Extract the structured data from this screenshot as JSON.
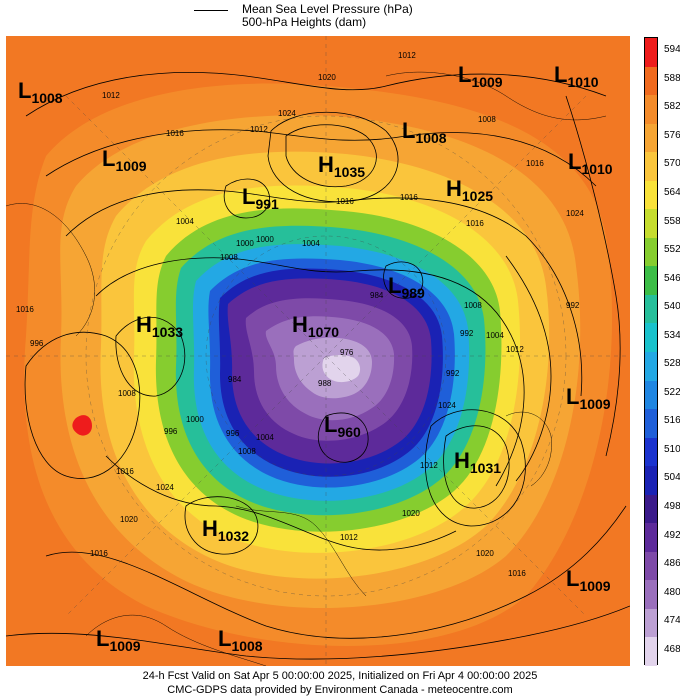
{
  "title": {
    "line1": "Mean Sea Level Pressure (hPa)",
    "line2": "500-hPa Heights (dam)"
  },
  "footer": {
    "line1": "24-h Fcst Valid on Sat Apr  5 00:00:00 2025, Initialized on Fri Apr  4 00:00:00 2025",
    "line2": "CMC-GDPS data provided by Environment Canada - meteocentre.com"
  },
  "colorbar": {
    "levels": [
      "594",
      "588",
      "582",
      "576",
      "570",
      "564",
      "558",
      "552",
      "546",
      "540",
      "534",
      "528",
      "522",
      "516",
      "510",
      "504",
      "498",
      "492",
      "486",
      "480",
      "474",
      "468"
    ],
    "colors": [
      "#ee1c1c",
      "#f06a1e",
      "#f48b2a",
      "#f6a534",
      "#fac53c",
      "#f9e23a",
      "#c6dd2f",
      "#86cd2f",
      "#3cbd46",
      "#26bf9a",
      "#19c2cc",
      "#23a8e4",
      "#1f86e2",
      "#1f5fd9",
      "#1b33cf",
      "#1a22b4",
      "#3b1a8a",
      "#5d2a9a",
      "#7e4aa8",
      "#9a6fbc",
      "#bca0d3",
      "#e2d4ec"
    ]
  },
  "pressure_centers": [
    {
      "type": "L",
      "value": "1008"
    },
    {
      "type": "L",
      "value": "1009"
    },
    {
      "type": "L",
      "value": "1010"
    },
    {
      "type": "L",
      "value": "1009"
    },
    {
      "type": "L",
      "value": "1008"
    },
    {
      "type": "H",
      "value": "1035"
    },
    {
      "type": "L",
      "value": "1010"
    },
    {
      "type": "L",
      "value": "991"
    },
    {
      "type": "H",
      "value": "1025"
    },
    {
      "type": "L",
      "value": "989"
    },
    {
      "type": "H",
      "value": "1033"
    },
    {
      "type": "H",
      "value": "1070"
    },
    {
      "type": "L",
      "value": "1009"
    },
    {
      "type": "L",
      "value": "960"
    },
    {
      "type": "H",
      "value": "1031"
    },
    {
      "type": "H",
      "value": "1032"
    },
    {
      "type": "L",
      "value": "1009"
    },
    {
      "type": "L",
      "value": "1008"
    },
    {
      "type": "L",
      "value": "1009"
    }
  ],
  "contour_labels": [
    "1012",
    "1012",
    "1020",
    "1016",
    "1024",
    "1012",
    "1008",
    "1016",
    "1004",
    "1016",
    "1016",
    "1016",
    "1016",
    "1024",
    "996",
    "1000",
    "1000",
    "1004",
    "1008",
    "992",
    "1004",
    "1012",
    "984",
    "984",
    "1008",
    "996",
    "1000",
    "1004",
    "996",
    "1008",
    "1016",
    "1024",
    "1012",
    "1024",
    "1020",
    "1020",
    "1020",
    "1016",
    "1012",
    "1016",
    "976",
    "1008",
    "988",
    "992",
    "992"
  ]
}
